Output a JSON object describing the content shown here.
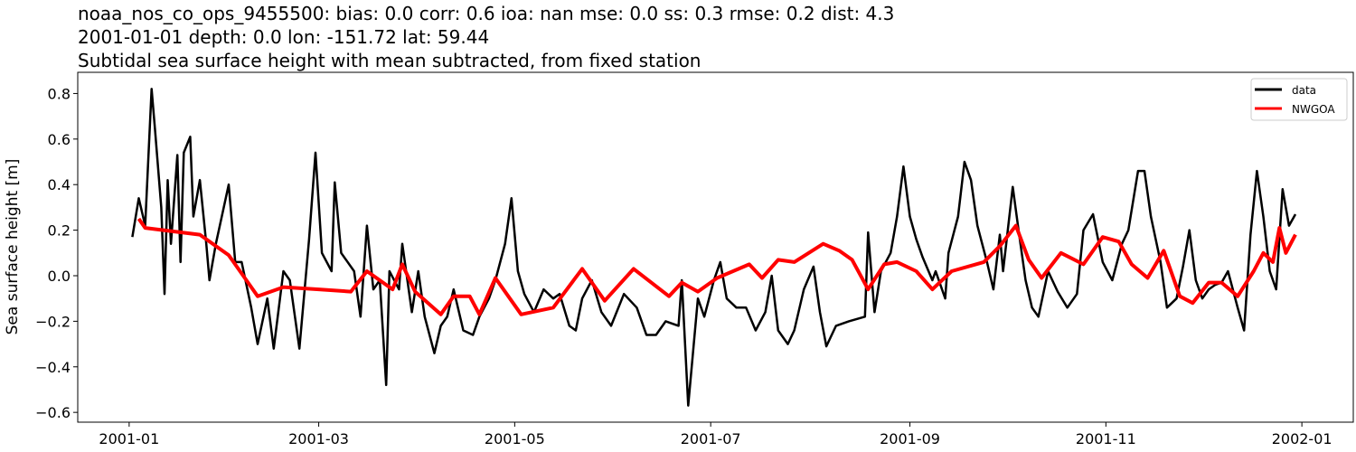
{
  "chart_data": {
    "type": "line",
    "title_lines": [
      "noaa_nos_co_ops_9455500: bias: 0.0  corr: 0.6  ioa: nan  mse: 0.0  ss: 0.3  rmse: 0.2  dist: 4.3",
      "2001-01-01 depth: 0.0 lon: -151.72 lat: 59.44",
      "Subtidal sea surface height with mean subtracted, from fixed station"
    ],
    "xlabel": "",
    "ylabel": "Sea surface height [m]",
    "xlim": [
      "2000-12-16",
      "2002-01-17"
    ],
    "ylim": [
      -0.643,
      0.893
    ],
    "x_ticks": [
      "2001-01",
      "2001-03",
      "2001-05",
      "2001-07",
      "2001-09",
      "2001-11",
      "2002-01"
    ],
    "y_ticks": [
      0.8,
      0.6,
      0.4,
      0.2,
      0.0,
      -0.2,
      -0.4,
      -0.6
    ],
    "y_tick_labels": [
      "0.8",
      "0.6",
      "0.4",
      "0.2",
      "0.0",
      "−0.2",
      "−0.4",
      "−0.6"
    ],
    "grid": false,
    "legend_position": "top-right",
    "series": [
      {
        "name": "data",
        "color": "#000000",
        "points": [
          [
            "2001-01-02",
            0.17
          ],
          [
            "2001-01-04",
            0.34
          ],
          [
            "2001-01-06",
            0.22
          ],
          [
            "2001-01-08",
            0.82
          ],
          [
            "2001-01-09",
            0.65
          ],
          [
            "2001-01-11",
            0.3
          ],
          [
            "2001-01-12",
            -0.08
          ],
          [
            "2001-01-13",
            0.42
          ],
          [
            "2001-01-14",
            0.14
          ],
          [
            "2001-01-16",
            0.53
          ],
          [
            "2001-01-17",
            0.06
          ],
          [
            "2001-01-18",
            0.54
          ],
          [
            "2001-01-20",
            0.61
          ],
          [
            "2001-01-21",
            0.26
          ],
          [
            "2001-01-23",
            0.42
          ],
          [
            "2001-01-25",
            0.14
          ],
          [
            "2001-01-26",
            -0.02
          ],
          [
            "2001-01-28",
            0.14
          ],
          [
            "2001-02-01",
            0.4
          ],
          [
            "2001-02-03",
            0.06
          ],
          [
            "2001-02-05",
            0.06
          ],
          [
            "2001-02-08",
            -0.14
          ],
          [
            "2001-02-10",
            -0.3
          ],
          [
            "2001-02-13",
            -0.1
          ],
          [
            "2001-02-15",
            -0.32
          ],
          [
            "2001-02-18",
            0.02
          ],
          [
            "2001-02-20",
            -0.02
          ],
          [
            "2001-02-23",
            -0.32
          ],
          [
            "2001-02-26",
            0.16
          ],
          [
            "2001-02-28",
            0.54
          ],
          [
            "2001-03-02",
            0.1
          ],
          [
            "2001-03-05",
            0.02
          ],
          [
            "2001-03-06",
            0.41
          ],
          [
            "2001-03-08",
            0.1
          ],
          [
            "2001-03-12",
            0.02
          ],
          [
            "2001-03-14",
            -0.18
          ],
          [
            "2001-03-16",
            0.22
          ],
          [
            "2001-03-18",
            -0.06
          ],
          [
            "2001-03-20",
            -0.02
          ],
          [
            "2001-03-22",
            -0.48
          ],
          [
            "2001-03-23",
            0.02
          ],
          [
            "2001-03-26",
            -0.06
          ],
          [
            "2001-03-27",
            0.14
          ],
          [
            "2001-03-30",
            -0.16
          ],
          [
            "2001-04-01",
            0.02
          ],
          [
            "2001-04-03",
            -0.18
          ],
          [
            "2001-04-06",
            -0.34
          ],
          [
            "2001-04-08",
            -0.22
          ],
          [
            "2001-04-10",
            -0.18
          ],
          [
            "2001-04-12",
            -0.06
          ],
          [
            "2001-04-15",
            -0.24
          ],
          [
            "2001-04-18",
            -0.26
          ],
          [
            "2001-04-20",
            -0.18
          ],
          [
            "2001-04-23",
            -0.1
          ],
          [
            "2001-04-25",
            -0.02
          ],
          [
            "2001-04-28",
            0.14
          ],
          [
            "2001-04-30",
            0.34
          ],
          [
            "2001-05-02",
            0.02
          ],
          [
            "2001-05-04",
            -0.08
          ],
          [
            "2001-05-07",
            -0.16
          ],
          [
            "2001-05-10",
            -0.06
          ],
          [
            "2001-05-13",
            -0.1
          ],
          [
            "2001-05-15",
            -0.08
          ],
          [
            "2001-05-18",
            -0.22
          ],
          [
            "2001-05-20",
            -0.24
          ],
          [
            "2001-05-22",
            -0.1
          ],
          [
            "2001-05-25",
            -0.02
          ],
          [
            "2001-05-28",
            -0.16
          ],
          [
            "2001-05-31",
            -0.22
          ],
          [
            "2001-06-04",
            -0.08
          ],
          [
            "2001-06-08",
            -0.14
          ],
          [
            "2001-06-11",
            -0.26
          ],
          [
            "2001-06-14",
            -0.26
          ],
          [
            "2001-06-17",
            -0.2
          ],
          [
            "2001-06-21",
            -0.22
          ],
          [
            "2001-06-22",
            -0.02
          ],
          [
            "2001-06-24",
            -0.57
          ],
          [
            "2001-06-27",
            -0.1
          ],
          [
            "2001-06-29",
            -0.18
          ],
          [
            "2001-07-02",
            -0.02
          ],
          [
            "2001-07-04",
            0.06
          ],
          [
            "2001-07-06",
            -0.1
          ],
          [
            "2001-07-09",
            -0.14
          ],
          [
            "2001-07-12",
            -0.14
          ],
          [
            "2001-07-15",
            -0.24
          ],
          [
            "2001-07-18",
            -0.16
          ],
          [
            "2001-07-20",
            0.0
          ],
          [
            "2001-07-22",
            -0.24
          ],
          [
            "2001-07-25",
            -0.3
          ],
          [
            "2001-07-27",
            -0.24
          ],
          [
            "2001-07-30",
            -0.06
          ],
          [
            "2001-08-02",
            0.04
          ],
          [
            "2001-08-04",
            -0.16
          ],
          [
            "2001-08-06",
            -0.31
          ],
          [
            "2001-08-09",
            -0.22
          ],
          [
            "2001-08-13",
            -0.2
          ],
          [
            "2001-08-18",
            -0.18
          ],
          [
            "2001-08-19",
            0.19
          ],
          [
            "2001-08-21",
            -0.16
          ],
          [
            "2001-08-23",
            0.02
          ],
          [
            "2001-08-26",
            0.1
          ],
          [
            "2001-08-28",
            0.26
          ],
          [
            "2001-08-30",
            0.48
          ],
          [
            "2001-09-01",
            0.26
          ],
          [
            "2001-09-03",
            0.16
          ],
          [
            "2001-09-05",
            0.08
          ],
          [
            "2001-09-08",
            -0.02
          ],
          [
            "2001-09-09",
            0.02
          ],
          [
            "2001-09-12",
            -0.1
          ],
          [
            "2001-09-13",
            0.1
          ],
          [
            "2001-09-16",
            0.26
          ],
          [
            "2001-09-18",
            0.5
          ],
          [
            "2001-09-20",
            0.42
          ],
          [
            "2001-09-22",
            0.22
          ],
          [
            "2001-09-25",
            0.06
          ],
          [
            "2001-09-27",
            -0.06
          ],
          [
            "2001-09-29",
            0.18
          ],
          [
            "2001-09-30",
            0.02
          ],
          [
            "2001-10-03",
            0.39
          ],
          [
            "2001-10-05",
            0.18
          ],
          [
            "2001-10-07",
            -0.02
          ],
          [
            "2001-10-09",
            -0.14
          ],
          [
            "2001-10-11",
            -0.18
          ],
          [
            "2001-10-14",
            0.02
          ],
          [
            "2001-10-17",
            -0.07
          ],
          [
            "2001-10-20",
            -0.14
          ],
          [
            "2001-10-23",
            -0.08
          ],
          [
            "2001-10-25",
            0.2
          ],
          [
            "2001-10-28",
            0.27
          ],
          [
            "2001-10-31",
            0.06
          ],
          [
            "2001-11-03",
            -0.02
          ],
          [
            "2001-11-06",
            0.14
          ],
          [
            "2001-11-08",
            0.2
          ],
          [
            "2001-11-11",
            0.46
          ],
          [
            "2001-11-13",
            0.46
          ],
          [
            "2001-11-15",
            0.26
          ],
          [
            "2001-11-18",
            0.06
          ],
          [
            "2001-11-20",
            -0.14
          ],
          [
            "2001-11-23",
            -0.1
          ],
          [
            "2001-11-25",
            0.04
          ],
          [
            "2001-11-27",
            0.2
          ],
          [
            "2001-11-29",
            -0.02
          ],
          [
            "2001-12-01",
            -0.1
          ],
          [
            "2001-12-03",
            -0.06
          ],
          [
            "2001-12-05",
            -0.04
          ],
          [
            "2001-12-07",
            -0.03
          ],
          [
            "2001-12-09",
            0.02
          ],
          [
            "2001-12-12",
            -0.14
          ],
          [
            "2001-12-14",
            -0.24
          ],
          [
            "2001-12-16",
            0.18
          ],
          [
            "2001-12-18",
            0.46
          ],
          [
            "2001-12-20",
            0.26
          ],
          [
            "2001-12-22",
            0.02
          ],
          [
            "2001-12-24",
            -0.06
          ],
          [
            "2001-12-26",
            0.38
          ],
          [
            "2001-12-28",
            0.22
          ],
          [
            "2001-12-30",
            0.27
          ]
        ]
      },
      {
        "name": "NWGOA",
        "color": "#ff0000",
        "points": [
          [
            "2001-01-04",
            0.25
          ],
          [
            "2001-01-06",
            0.21
          ],
          [
            "2001-01-23",
            0.18
          ],
          [
            "2001-02-01",
            0.09
          ],
          [
            "2001-02-07",
            -0.03
          ],
          [
            "2001-02-10",
            -0.09
          ],
          [
            "2001-02-18",
            -0.05
          ],
          [
            "2001-03-01",
            -0.06
          ],
          [
            "2001-03-11",
            -0.07
          ],
          [
            "2001-03-16",
            0.02
          ],
          [
            "2001-03-24",
            -0.06
          ],
          [
            "2001-03-27",
            0.05
          ],
          [
            "2001-03-31",
            -0.07
          ],
          [
            "2001-04-08",
            -0.17
          ],
          [
            "2001-04-12",
            -0.09
          ],
          [
            "2001-04-17",
            -0.09
          ],
          [
            "2001-04-20",
            -0.17
          ],
          [
            "2001-04-25",
            -0.01
          ],
          [
            "2001-04-30",
            -0.11
          ],
          [
            "2001-05-03",
            -0.17
          ],
          [
            "2001-05-13",
            -0.14
          ],
          [
            "2001-05-22",
            0.03
          ],
          [
            "2001-05-29",
            -0.11
          ],
          [
            "2001-06-07",
            0.03
          ],
          [
            "2001-06-18",
            -0.09
          ],
          [
            "2001-06-22",
            -0.03
          ],
          [
            "2001-06-27",
            -0.07
          ],
          [
            "2001-07-03",
            -0.01
          ],
          [
            "2001-07-13",
            0.05
          ],
          [
            "2001-07-17",
            -0.01
          ],
          [
            "2001-07-22",
            0.07
          ],
          [
            "2001-07-27",
            0.06
          ],
          [
            "2001-08-05",
            0.14
          ],
          [
            "2001-08-10",
            0.11
          ],
          [
            "2001-08-14",
            0.07
          ],
          [
            "2001-08-19",
            -0.06
          ],
          [
            "2001-08-24",
            0.05
          ],
          [
            "2001-08-28",
            0.06
          ],
          [
            "2001-09-03",
            0.02
          ],
          [
            "2001-09-08",
            -0.06
          ],
          [
            "2001-09-14",
            0.02
          ],
          [
            "2001-09-24",
            0.06
          ],
          [
            "2001-09-29",
            0.13
          ],
          [
            "2001-10-04",
            0.22
          ],
          [
            "2001-10-08",
            0.07
          ],
          [
            "2001-10-12",
            -0.01
          ],
          [
            "2001-10-18",
            0.1
          ],
          [
            "2001-10-25",
            0.05
          ],
          [
            "2001-10-31",
            0.17
          ],
          [
            "2001-11-05",
            0.15
          ],
          [
            "2001-11-09",
            0.05
          ],
          [
            "2001-11-14",
            -0.01
          ],
          [
            "2001-11-19",
            0.11
          ],
          [
            "2001-11-24",
            -0.09
          ],
          [
            "2001-11-28",
            -0.12
          ],
          [
            "2001-12-03",
            -0.03
          ],
          [
            "2001-12-07",
            -0.03
          ],
          [
            "2001-12-12",
            -0.09
          ],
          [
            "2001-12-17",
            0.02
          ],
          [
            "2001-12-20",
            0.1
          ],
          [
            "2001-12-23",
            0.06
          ],
          [
            "2001-12-25",
            0.21
          ],
          [
            "2001-12-27",
            0.1
          ],
          [
            "2001-12-30",
            0.18
          ]
        ]
      }
    ]
  }
}
